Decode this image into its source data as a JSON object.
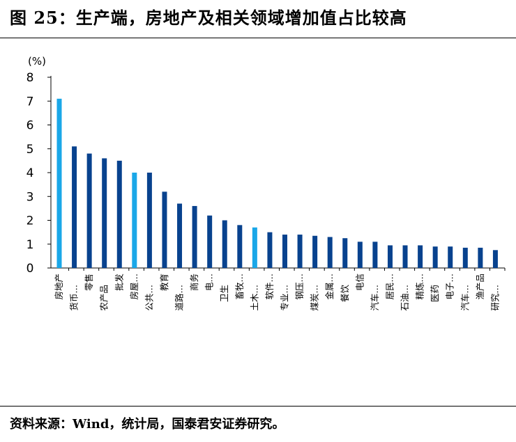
{
  "title": "图 25：生产端，房地产及相关领域增加值占比较高",
  "source": "资料来源：Wind，统计局，国泰君安证券研究。",
  "colors": {
    "highlight": "#1aa7e8",
    "normal": "#08428e",
    "axis": "#000000"
  },
  "chart_data": {
    "type": "bar",
    "ylabel": "(%)",
    "ylim": [
      0,
      8
    ],
    "yticks": [
      0,
      1,
      2,
      3,
      4,
      5,
      6,
      7,
      8
    ],
    "grid": false,
    "legend": "none",
    "categories": [
      "房地产",
      "货币…",
      "零售",
      "农产品",
      "批发",
      "房屋…",
      "公共…",
      "教育",
      "道路…",
      "商务",
      "电…",
      "卫生",
      "畜牧…",
      "土木…",
      "软件…",
      "专业…",
      "钢压…",
      "煤炭…",
      "金属…",
      "餐饮",
      "电信",
      "汽车…",
      "居民…",
      "石油…",
      "精炼…",
      "医药",
      "电子…",
      "汽车…",
      "渔产品",
      "研究…"
    ],
    "label_row": [
      0,
      1,
      0,
      1,
      0,
      0,
      1,
      0,
      1,
      0,
      0,
      1,
      0,
      1,
      0,
      1,
      0,
      1,
      0,
      1,
      0,
      1,
      0,
      1,
      0,
      1,
      0,
      1,
      0,
      1
    ],
    "values": [
      7.1,
      5.1,
      4.8,
      4.6,
      4.5,
      4.0,
      4.0,
      3.2,
      2.7,
      2.6,
      2.2,
      2.0,
      1.8,
      1.7,
      1.5,
      1.4,
      1.4,
      1.35,
      1.3,
      1.25,
      1.1,
      1.1,
      0.95,
      0.95,
      0.95,
      0.9,
      0.9,
      0.85,
      0.85,
      0.75
    ],
    "highlight": [
      true,
      false,
      false,
      false,
      false,
      true,
      false,
      false,
      false,
      false,
      false,
      false,
      false,
      true,
      false,
      false,
      false,
      false,
      false,
      false,
      false,
      false,
      false,
      false,
      false,
      false,
      false,
      false,
      false,
      false
    ]
  }
}
